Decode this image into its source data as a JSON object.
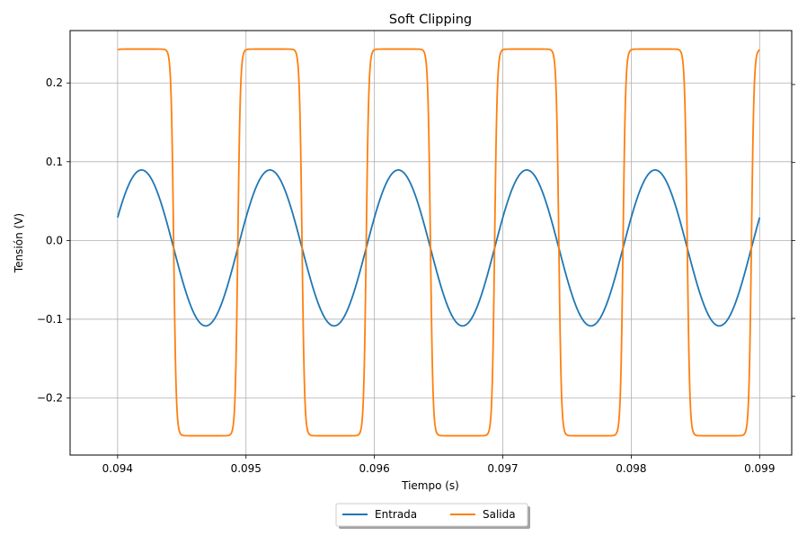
{
  "chart_data": {
    "type": "line",
    "title": "Soft Clipping",
    "xlabel": "Tiempo (s)",
    "ylabel": "Tensión (V)",
    "xlim": [
      0.09363,
      0.09925
    ],
    "ylim": [
      -0.2725,
      0.2665
    ],
    "xticks": [
      {
        "value": 0.094,
        "label": "0.094"
      },
      {
        "value": 0.095,
        "label": "0.095"
      },
      {
        "value": 0.096,
        "label": "0.096"
      },
      {
        "value": 0.097,
        "label": "0.097"
      },
      {
        "value": 0.098,
        "label": "0.098"
      },
      {
        "value": 0.099,
        "label": "0.099"
      }
    ],
    "yticks": [
      {
        "value": -0.2,
        "label": "−0.2"
      },
      {
        "value": -0.1,
        "label": "−0.1"
      },
      {
        "value": 0.0,
        "label": "0.0"
      },
      {
        "value": 0.1,
        "label": "0.1"
      },
      {
        "value": 0.2,
        "label": "0.2"
      }
    ],
    "right_ticks": [
      -0.198,
      -0.099,
      0.0,
      0.099,
      0.198
    ],
    "grid": true,
    "legend_position": "bottom-center",
    "x_range": [
      0.094,
      0.099
    ],
    "series": [
      {
        "name": "Entrada",
        "color": "#1f77b4",
        "frequency_hz": 1000,
        "amplitude": 0.099,
        "offset": -0.0095,
        "phase_rad": 0.4,
        "shape": "sine"
      },
      {
        "name": "Salida",
        "color": "#ff7f0e",
        "frequency_hz": 1000,
        "amplitude": 0.2455,
        "offset": -0.0025,
        "phase_rad": 0.4,
        "drive": 8,
        "shape": "soft-clip"
      }
    ]
  }
}
